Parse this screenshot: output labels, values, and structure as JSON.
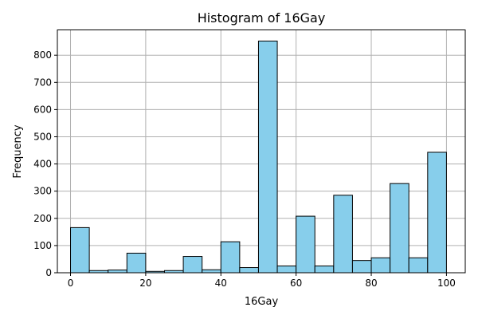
{
  "chart_data": {
    "type": "bar",
    "subtype": "histogram",
    "title": "Histogram of 16Gay",
    "xlabel": "16Gay",
    "ylabel": "Frequency",
    "xlim": [
      -3.5,
      105
    ],
    "ylim": [
      0,
      893
    ],
    "xticks": [
      0,
      20,
      40,
      60,
      80,
      100
    ],
    "yticks": [
      0,
      100,
      200,
      300,
      400,
      500,
      600,
      700,
      800
    ],
    "grid": true,
    "bar_color": "#87ceeb",
    "edge_color": "#000000",
    "bin_edges": [
      0,
      5,
      10,
      15,
      20,
      25,
      30,
      35,
      40,
      45,
      50,
      55,
      60,
      65,
      70,
      75,
      80,
      85,
      90,
      95,
      100
    ],
    "values": [
      166,
      8,
      10,
      72,
      5,
      8,
      60,
      11,
      114,
      19,
      852,
      25,
      208,
      25,
      285,
      45,
      55,
      328,
      55,
      443
    ]
  }
}
